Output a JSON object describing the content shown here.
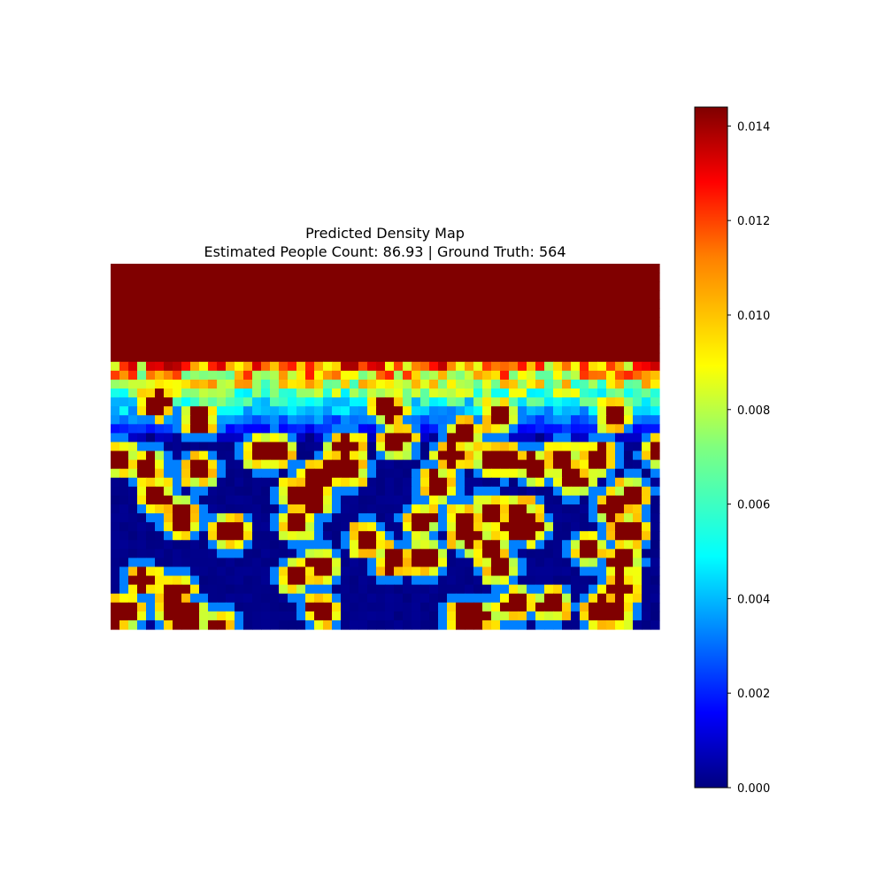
{
  "chart_data": {
    "type": "heatmap",
    "title": "Predicted Density Map",
    "subtitle": "Estimated People Count: 86.93 | Ground Truth: 564",
    "axes_visible": false,
    "colormap": "jet",
    "colors": [
      "#00007f",
      "#0000ff",
      "#007fff",
      "#00ffff",
      "#7fff7f",
      "#ffff00",
      "#ff7f00",
      "#ff0000",
      "#7f0000"
    ],
    "grid_size": [
      62,
      41
    ],
    "value_range": [
      0,
      0.0144
    ],
    "dense_region": "upper portion saturated near 0.014; lower portion near 0.000 with isolated saturated blobs",
    "colorbar": {
      "ticks": [
        0.0,
        0.002,
        0.004,
        0.006,
        0.008,
        0.01,
        0.012,
        0.014
      ],
      "tick_labels": [
        "0.000",
        "0.002",
        "0.004",
        "0.006",
        "0.008",
        "0.010",
        "0.012",
        "0.014"
      ]
    }
  }
}
